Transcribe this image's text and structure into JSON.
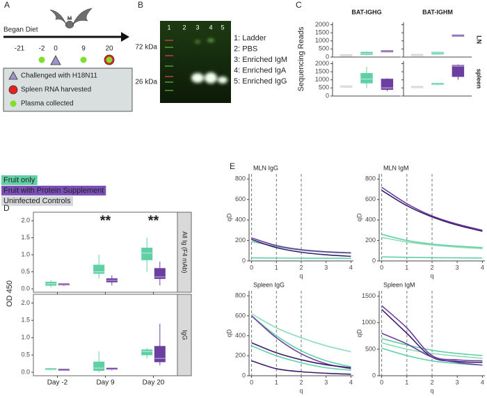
{
  "panel_a": {
    "label": "A",
    "start_label": "Began Diet",
    "days": [
      -21,
      -2,
      0,
      9,
      20
    ],
    "plasma_days": [
      -2,
      9,
      20
    ],
    "challenge_days": [
      0
    ],
    "harvest_days": [
      20
    ],
    "legend": [
      "Challenged with H18N11",
      "Spleen RNA harvested",
      "Plasma collected"
    ]
  },
  "panel_b": {
    "label": "B",
    "lanes": [
      "1",
      "2",
      "3",
      "4",
      "5"
    ],
    "size_markers": [
      "72 kDa",
      "26 kDa"
    ],
    "key": [
      "1: Ladder",
      "2: PBS",
      "3: Enriched IgM",
      "4: Enriched IgA",
      "5: Enriched IgG"
    ]
  },
  "legend": [
    {
      "name": "Fruit only",
      "color": "#5fd0a5"
    },
    {
      "name": "Fruit with Protein Supplement",
      "color": "#7b4fb8"
    },
    {
      "name": "Uninfected Controls",
      "color": "#d5d8d8"
    }
  ],
  "chart_data": [
    {
      "type": "box",
      "label": "C",
      "ylabel": "Sequencing Reads",
      "columns": [
        "BAT-IGHG",
        "BAT-IGHM"
      ],
      "rows": [
        "LN",
        "spleen"
      ],
      "ylim": [
        0,
        2150
      ],
      "yticks": [
        0,
        500,
        1000,
        1500,
        2000
      ],
      "facets": [
        {
          "boxes": [
            {
              "color": "#c8cccc",
              "min": 90,
              "q1": 95,
              "median": 100,
              "q3": 105,
              "max": 110
            },
            {
              "color": "#5fd0a5",
              "min": 100,
              "q1": 150,
              "median": 200,
              "q3": 300,
              "max": 350
            },
            {
              "color": "#6a3fa0",
              "min": 340,
              "q1": 345,
              "median": 350,
              "q3": 355,
              "max": 360
            }
          ]
        },
        {
          "boxes": [
            {
              "color": "#c8cccc",
              "min": 110,
              "q1": 115,
              "median": 120,
              "q3": 125,
              "max": 130
            },
            {
              "color": "#5fd0a5",
              "min": 150,
              "q1": 180,
              "median": 250,
              "q3": 300,
              "max": 320
            },
            {
              "color": "#6a3fa0",
              "min": 1310,
              "q1": 1315,
              "median": 1320,
              "q3": 1325,
              "max": 1330
            }
          ]
        },
        {
          "boxes": [
            {
              "color": "#c8cccc",
              "min": 570,
              "q1": 575,
              "median": 580,
              "q3": 585,
              "max": 590
            },
            {
              "color": "#5fd0a5",
              "min": 500,
              "q1": 800,
              "median": 1050,
              "q3": 1400,
              "max": 1800
            },
            {
              "color": "#6a3fa0",
              "min": 300,
              "q1": 400,
              "median": 500,
              "q3": 1050,
              "max": 1100
            }
          ]
        },
        {
          "boxes": [
            {
              "color": "#c8cccc",
              "min": 540,
              "q1": 545,
              "median": 550,
              "q3": 555,
              "max": 560
            },
            {
              "color": "#5fd0a5",
              "min": 650,
              "q1": 660,
              "median": 700,
              "q3": 740,
              "max": 750
            },
            {
              "color": "#6a3fa0",
              "min": 1000,
              "q1": 1200,
              "median": 1850,
              "q3": 1900,
              "max": 1950
            }
          ]
        }
      ]
    },
    {
      "type": "box",
      "label": "D",
      "ylabel": "OD 450",
      "categories": [
        "Day -2",
        "Day 9",
        "Day 20"
      ],
      "rows": [
        "All Ig (F4 mAb)",
        "IgG"
      ],
      "ylim": [
        -0.1,
        2.25
      ],
      "yticks": [
        {
          "value": 0,
          "label": "0.0"
        },
        {
          "value": 0.5,
          "label": "0.5"
        },
        {
          "value": 1,
          "label": "1.0"
        },
        {
          "value": 1.5,
          "label": "1.5"
        },
        {
          "value": 2,
          "label": "2.0"
        }
      ],
      "annotations": [
        null,
        "**",
        "**"
      ],
      "facets": [
        {
          "groups": [
            {
              "boxes": [
                {
                  "color": "#5fd0a5",
                  "min": 0.05,
                  "q1": 0.1,
                  "median": 0.15,
                  "q3": 0.2,
                  "max": 0.25
                },
                {
                  "color": "#6a3fa0",
                  "min": 0.08,
                  "q1": 0.1,
                  "median": 0.12,
                  "q3": 0.13,
                  "max": 0.15
                }
              ]
            },
            {
              "boxes": [
                {
                  "color": "#5fd0a5",
                  "min": 0.3,
                  "q1": 0.45,
                  "median": 0.5,
                  "q3": 0.7,
                  "max": 1.0
                },
                {
                  "color": "#6a3fa0",
                  "min": 0.1,
                  "q1": 0.2,
                  "median": 0.25,
                  "q3": 0.3,
                  "max": 0.4
                }
              ]
            },
            {
              "boxes": [
                {
                  "color": "#5fd0a5",
                  "min": 0.5,
                  "q1": 0.85,
                  "median": 1.05,
                  "q3": 1.2,
                  "max": 1.5
                },
                {
                  "color": "#6a3fa0",
                  "min": 0.1,
                  "q1": 0.3,
                  "median": 0.35,
                  "q3": 0.6,
                  "max": 0.8
                }
              ]
            }
          ]
        },
        {
          "groups": [
            {
              "boxes": [
                {
                  "color": "#5fd0a5",
                  "min": 0.05,
                  "q1": 0.07,
                  "median": 0.08,
                  "q3": 0.09,
                  "max": 0.1
                },
                {
                  "color": "#6a3fa0",
                  "min": 0.05,
                  "q1": 0.05,
                  "median": 0.06,
                  "q3": 0.07,
                  "max": 0.08
                }
              ]
            },
            {
              "boxes": [
                {
                  "color": "#5fd0a5",
                  "min": 0,
                  "q1": 0.05,
                  "median": 0.12,
                  "q3": 0.3,
                  "max": 0.6
                },
                {
                  "color": "#6a3fa0",
                  "min": 0.05,
                  "q1": 0.07,
                  "median": 0.08,
                  "q3": 0.1,
                  "max": 0.12
                }
              ]
            },
            {
              "boxes": [
                {
                  "color": "#5fd0a5",
                  "min": 0.4,
                  "q1": 0.5,
                  "median": 0.6,
                  "q3": 0.65,
                  "max": 0.7
                },
                {
                  "color": "#6a3fa0",
                  "min": 0.2,
                  "q1": 0.3,
                  "median": 0.4,
                  "q3": 0.75,
                  "max": 1.4
                }
              ]
            }
          ]
        }
      ]
    },
    {
      "type": "line",
      "label": "E",
      "xlabel": "q",
      "ylabel": "qD",
      "x": [
        0,
        1,
        2,
        3,
        4
      ],
      "xlim": [
        -0.1,
        4.1
      ],
      "xticks": [
        0,
        1,
        2,
        3,
        4
      ],
      "vlines": [
        0,
        1,
        2
      ],
      "facets": [
        {
          "title": "MLN IgG",
          "ylim": [
            0,
            850
          ],
          "yticks": [
            0,
            200,
            400,
            600,
            800
          ],
          "series": [
            {
              "color": "#5fd0a5",
              "values": [
                190,
                140,
                105,
                85,
                75
              ]
            },
            {
              "color": "#5fd0a5",
              "values": [
                30,
                28,
                27,
                26,
                25
              ]
            },
            {
              "color": "#6a3fa0",
              "values": [
                225,
                150,
                110,
                90,
                80
              ]
            },
            {
              "color": "#3b1c6b",
              "values": [
                210,
                130,
                85,
                60,
                45
              ]
            }
          ]
        },
        {
          "title": "MLN IgM",
          "ylim": [
            0,
            850
          ],
          "yticks": [
            0,
            200,
            400,
            600,
            800
          ],
          "series": [
            {
              "color": "#5fd0a5",
              "values": [
                260,
                200,
                165,
                145,
                130
              ]
            },
            {
              "color": "#8fdcb8",
              "values": [
                230,
                185,
                155,
                135,
                120
              ]
            },
            {
              "color": "#5fd0a5",
              "values": [
                40,
                35,
                32,
                30,
                28
              ]
            },
            {
              "color": "#6a3fa0",
              "values": [
                720,
                560,
                440,
                360,
                300
              ]
            },
            {
              "color": "#3b1c6b",
              "values": [
                690,
                540,
                430,
                350,
                290
              ]
            }
          ]
        },
        {
          "title": "Spleen IgG",
          "ylim": [
            0,
            850
          ],
          "yticks": [
            0,
            200,
            400,
            600,
            800
          ],
          "series": [
            {
              "color": "#8fdcb8",
              "values": [
                620,
                480,
                380,
                300,
                240
              ]
            },
            {
              "color": "#5fd0a5",
              "values": [
                600,
                400,
                250,
                150,
                90
              ]
            },
            {
              "color": "#5fd0a5",
              "values": [
                300,
                200,
                130,
                80,
                55
              ]
            },
            {
              "color": "#6a3fa0",
              "values": [
                600,
                380,
                220,
                120,
                70
              ]
            },
            {
              "color": "#3b1c6b",
              "values": [
                330,
                230,
                160,
                110,
                80
              ]
            },
            {
              "color": "#3b1c6b",
              "values": [
                150,
                70,
                40,
                25,
                15
              ]
            }
          ]
        },
        {
          "title": "Spleen IgM",
          "ylim": [
            0,
            1600
          ],
          "yticks": [
            0,
            500,
            1000,
            1500
          ],
          "series": [
            {
              "color": "#5fd0a5",
              "values": [
                700,
                580,
                480,
                420,
                380
              ]
            },
            {
              "color": "#8fdcb8",
              "values": [
                620,
                500,
                420,
                370,
                330
              ]
            },
            {
              "color": "#5fd0a5",
              "values": [
                520,
                380,
                280,
                230,
                200
              ]
            },
            {
              "color": "#6a3fa0",
              "values": [
                1320,
                900,
                380,
                300,
                280
              ]
            },
            {
              "color": "#3b1c6b",
              "values": [
                1250,
                800,
                350,
                270,
                250
              ]
            },
            {
              "color": "#6a3fa0",
              "values": [
                800,
                600,
                350,
                250,
                200
              ]
            }
          ]
        }
      ]
    }
  ]
}
